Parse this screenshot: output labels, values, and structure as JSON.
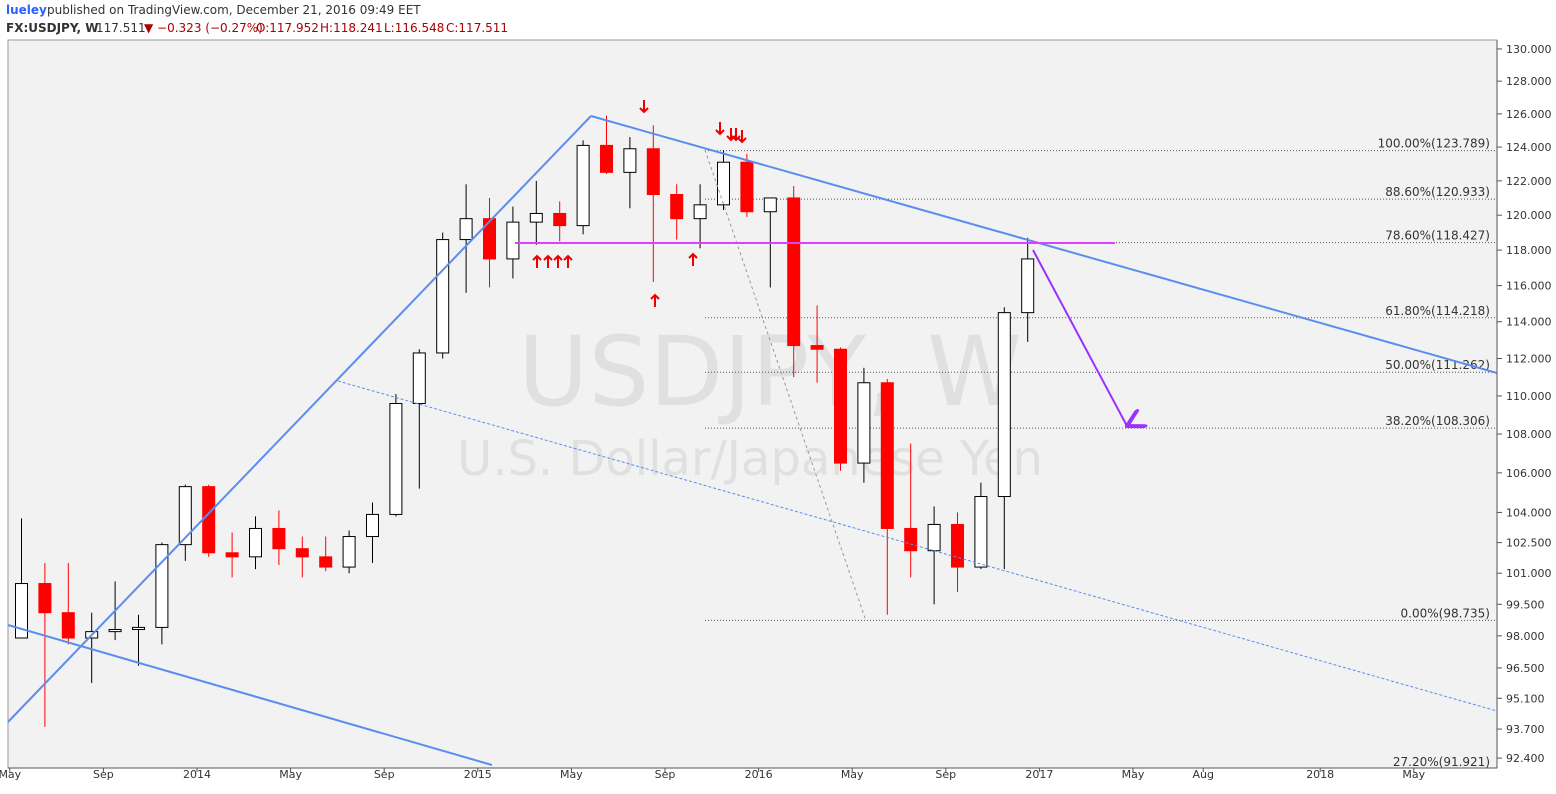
{
  "header": {
    "author": "lueley",
    "published": "published on TradingView.com, December 21, 2016 09:49 EET",
    "symbol": "FX:USDJPY, W",
    "last": "117.511",
    "change": "▼ −0.323 (−0.27%)",
    "open": "O:117.952",
    "high": "H:118.241",
    "low": "L:116.548",
    "close": "C:117.511"
  },
  "chart_data": {
    "type": "candlestick",
    "watermark": "USDJPY, W",
    "watermark_sub": "U.S. Dollar/Japanese Yen",
    "log": true,
    "up_color": "#ffffff",
    "down_color": "#ff0000",
    "categories": [
      "May",
      null,
      null,
      null,
      "Sep",
      null,
      null,
      null,
      "2014",
      null,
      null,
      null,
      "May",
      null,
      null,
      null,
      "Sep",
      null,
      null,
      null,
      "2015",
      null,
      null,
      null,
      "May",
      null,
      null,
      null,
      "Sep",
      null,
      null,
      null,
      "2016",
      null,
      null,
      null,
      "May",
      null,
      null,
      null,
      "Sep",
      null,
      null,
      null,
      "2017",
      null,
      null,
      null,
      "May",
      null,
      null,
      "Aug",
      null,
      null,
      null,
      null,
      "2018",
      null,
      null,
      null,
      "May",
      null
    ],
    "open": [
      97.9,
      100.5,
      99.1,
      97.9,
      98.2,
      98.3,
      98.4,
      102.4,
      105.3,
      102.0,
      101.8,
      103.2,
      102.2,
      101.8,
      101.3,
      102.8,
      103.9,
      109.6,
      112.3,
      118.6,
      119.8,
      117.5,
      119.6,
      120.1,
      119.4,
      124.1,
      122.5,
      123.9,
      121.2,
      119.8,
      120.6,
      123.1,
      120.2,
      121.0,
      112.7,
      112.5,
      106.5,
      110.7,
      103.2,
      102.1,
      103.4,
      101.3,
      104.8,
      114.5,
      null,
      null,
      null,
      null,
      null,
      null,
      null,
      null,
      null,
      null,
      null,
      null,
      null,
      null,
      null,
      null,
      null,
      null
    ],
    "high": [
      103.7,
      101.5,
      101.5,
      99.1,
      100.6,
      99.0,
      102.5,
      105.4,
      105.4,
      103.0,
      103.8,
      104.1,
      102.8,
      102.8,
      103.1,
      104.5,
      110.1,
      112.5,
      119.0,
      121.8,
      121.0,
      120.5,
      122.0,
      120.8,
      124.4,
      125.9,
      124.6,
      125.3,
      121.8,
      121.8,
      123.8,
      123.6,
      120.7,
      121.7,
      114.9,
      112.6,
      111.5,
      110.9,
      107.5,
      104.3,
      104.0,
      105.5,
      114.8,
      118.7,
      null,
      null,
      null,
      null,
      null,
      null,
      null,
      null,
      null,
      null,
      null,
      null,
      null,
      null,
      null,
      null,
      null,
      null
    ],
    "low": [
      97.9,
      93.8,
      97.6,
      95.8,
      97.8,
      96.6,
      97.6,
      101.6,
      101.8,
      100.8,
      101.2,
      101.4,
      100.8,
      101.1,
      101.0,
      101.5,
      103.8,
      105.2,
      112.0,
      115.6,
      115.9,
      116.4,
      118.3,
      118.5,
      118.9,
      122.4,
      120.4,
      116.2,
      118.6,
      118.1,
      120.3,
      119.9,
      115.9,
      111.0,
      110.7,
      106.1,
      105.5,
      99.0,
      100.8,
      99.5,
      100.1,
      101.2,
      101.2,
      112.9,
      null,
      null,
      null,
      null,
      null,
      null,
      null,
      null,
      null,
      null,
      null,
      null,
      null,
      null,
      null,
      null,
      null,
      null
    ],
    "close": [
      100.5,
      99.1,
      97.9,
      98.2,
      98.3,
      98.4,
      102.4,
      105.3,
      102.0,
      101.8,
      103.2,
      102.2,
      101.8,
      101.3,
      102.8,
      103.9,
      109.6,
      112.3,
      118.6,
      119.8,
      117.5,
      119.6,
      120.1,
      119.4,
      124.1,
      122.5,
      123.9,
      121.2,
      119.8,
      120.6,
      123.1,
      120.2,
      121.0,
      112.7,
      112.5,
      106.5,
      110.7,
      103.2,
      102.1,
      103.4,
      101.3,
      104.8,
      114.5,
      117.5,
      null,
      null,
      null,
      null,
      null,
      null,
      null,
      null,
      null,
      null,
      null,
      null,
      null,
      null,
      null,
      null,
      null,
      null
    ],
    "ylim": [
      91.96,
      130.56
    ],
    "yticks": [
      {
        "value": 92.4,
        "label": "92.400"
      },
      {
        "value": 93.7,
        "label": "93.700"
      },
      {
        "value": 95.1,
        "label": "95.100"
      },
      {
        "value": 96.5,
        "label": "96.500"
      },
      {
        "value": 98,
        "label": "98.000"
      },
      {
        "value": 99.5,
        "label": "99.500"
      },
      {
        "value": 101,
        "label": "101.000"
      },
      {
        "value": 102.5,
        "label": "102.500"
      },
      {
        "value": 104,
        "label": "104.000"
      },
      {
        "value": 106,
        "label": "106.000"
      },
      {
        "value": 108,
        "label": "108.000"
      },
      {
        "value": 110,
        "label": "110.000"
      },
      {
        "value": 112,
        "label": "112.000"
      },
      {
        "value": 114,
        "label": "114.000"
      },
      {
        "value": 116,
        "label": "116.000"
      },
      {
        "value": 118,
        "label": "118.000"
      },
      {
        "value": 120,
        "label": "120.000"
      },
      {
        "value": 122,
        "label": "122.000"
      },
      {
        "value": 124,
        "label": "124.000"
      },
      {
        "value": 126,
        "label": "126.000"
      },
      {
        "value": 128,
        "label": "128.000"
      },
      {
        "value": 130,
        "label": "130.000"
      }
    ],
    "fib": [
      {
        "value": 123.789,
        "label": "100.00%(123.789)"
      },
      {
        "value": 120.933,
        "label": "88.60%(120.933)"
      },
      {
        "value": 118.427,
        "label": "78.60%(118.427)"
      },
      {
        "value": 114.218,
        "label": "61.80%(114.218)"
      },
      {
        "value": 111.262,
        "label": "50.00%(111.262)"
      },
      {
        "value": 108.306,
        "label": "38.20%(108.306)"
      },
      {
        "value": 98.735,
        "label": "0.00%(98.735)"
      },
      {
        "value": 91.921,
        "label": "27.20%(91.921)"
      }
    ]
  }
}
